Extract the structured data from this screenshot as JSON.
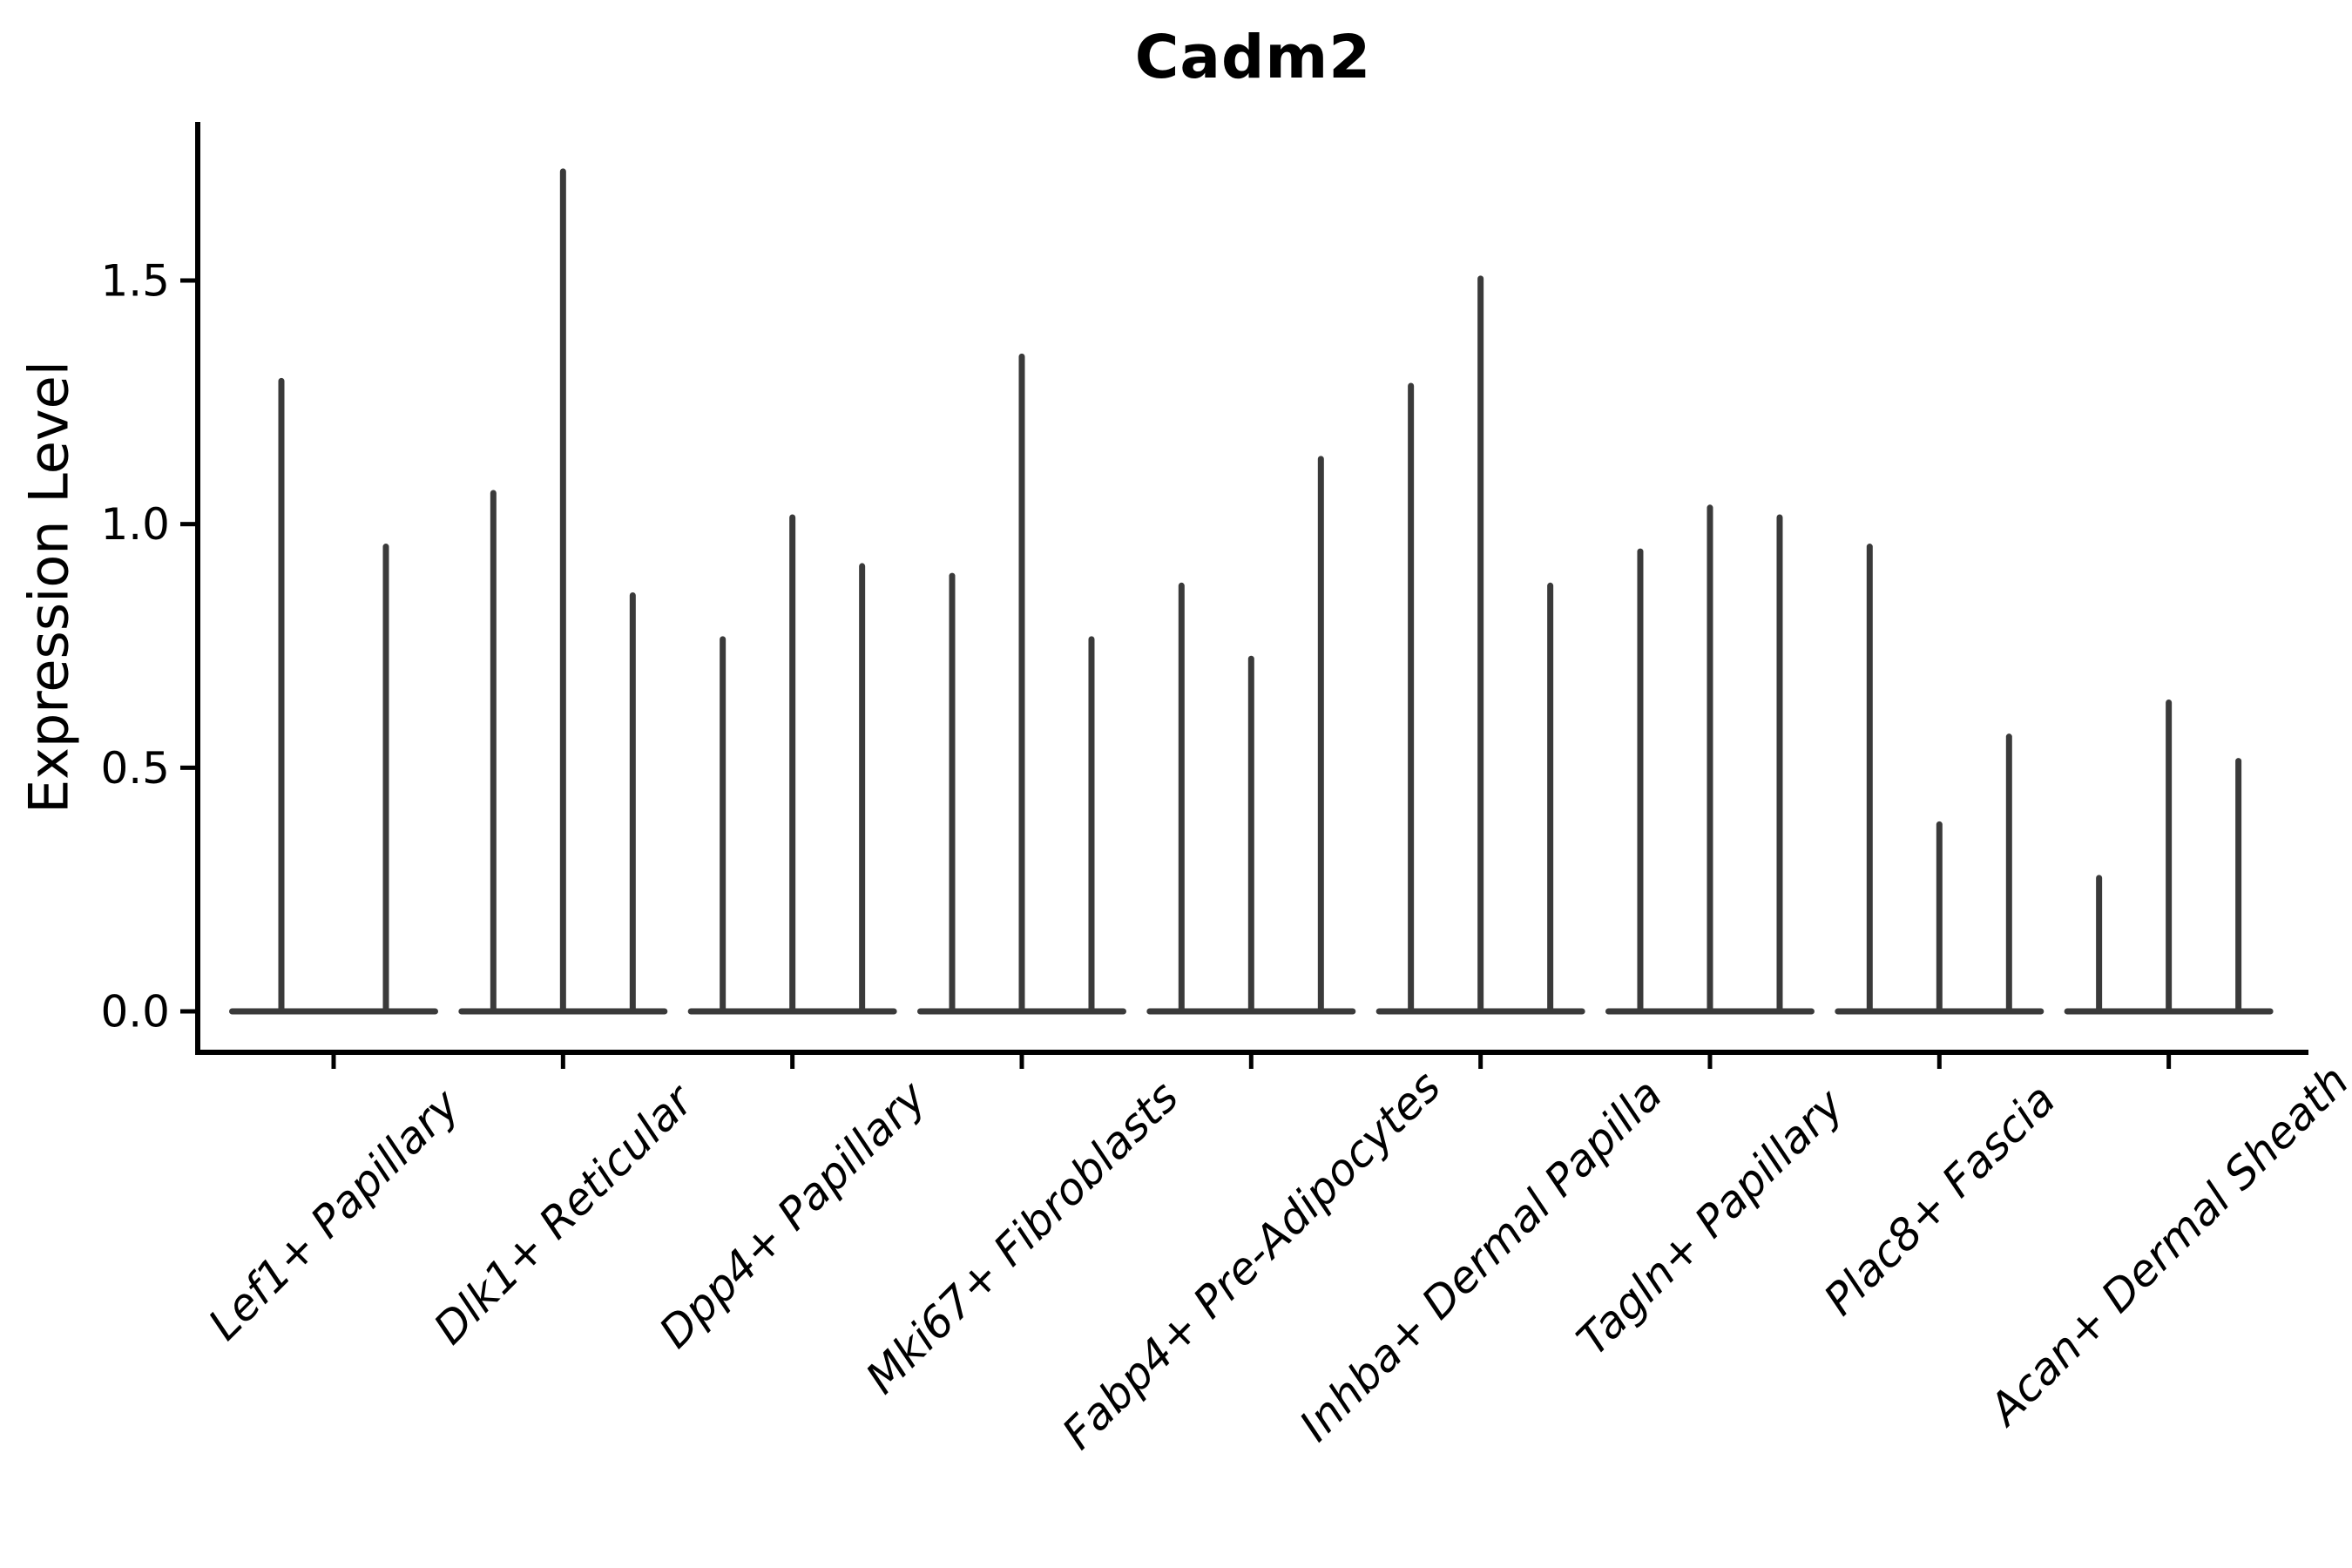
{
  "figure": {
    "background_color": "#ffffff",
    "text_color": "#000000",
    "axis_color": "#000000",
    "violin_color": "#3a3a3a"
  },
  "chart_data": {
    "type": "violin",
    "title": "Cadm2",
    "ylabel": "Expression Level",
    "xlabel": "",
    "ylim": [
      -0.09,
      1.82
    ],
    "yticks": [
      "0.0",
      "0.5",
      "1.0",
      "1.5"
    ],
    "grid": false,
    "legend": false,
    "x_tick_rotation_deg": 45,
    "categories": [
      "Lef1+ Papillary",
      "Dlk1+ Reticular",
      "Dpp4+ Papillary",
      "Mki67+ Fibroblasts",
      "Fabp4+ Pre-Adipocytes",
      "Inhba+ Dermal Papilla",
      "Tagln+ Papillary",
      "Plac8+ Fascia",
      "Acan+ Dermal Sheath"
    ],
    "series": [
      {
        "category": "Lef1+ Papillary",
        "violin_peaks": [
          1.3,
          0.96
        ]
      },
      {
        "category": "Dlk1+ Reticular",
        "violin_peaks": [
          1.07,
          1.73,
          0.86
        ]
      },
      {
        "category": "Dpp4+ Papillary",
        "violin_peaks": [
          0.77,
          1.02,
          0.92
        ]
      },
      {
        "category": "Mki67+ Fibroblasts",
        "violin_peaks": [
          0.9,
          1.35,
          0.77
        ]
      },
      {
        "category": "Fabp4+ Pre-Adipocytes",
        "violin_peaks": [
          0.88,
          0.73,
          1.14
        ]
      },
      {
        "category": "Inhba+ Dermal Papilla",
        "violin_peaks": [
          1.29,
          1.51,
          0.88
        ]
      },
      {
        "category": "Tagln+ Papillary",
        "violin_peaks": [
          0.95,
          1.04,
          1.02
        ]
      },
      {
        "category": "Plac8+ Fascia",
        "violin_peaks": [
          0.96,
          0.39,
          0.57
        ]
      },
      {
        "category": "Acan+ Dermal Sheath",
        "violin_peaks": [
          0.28,
          0.64,
          0.52
        ]
      }
    ]
  }
}
